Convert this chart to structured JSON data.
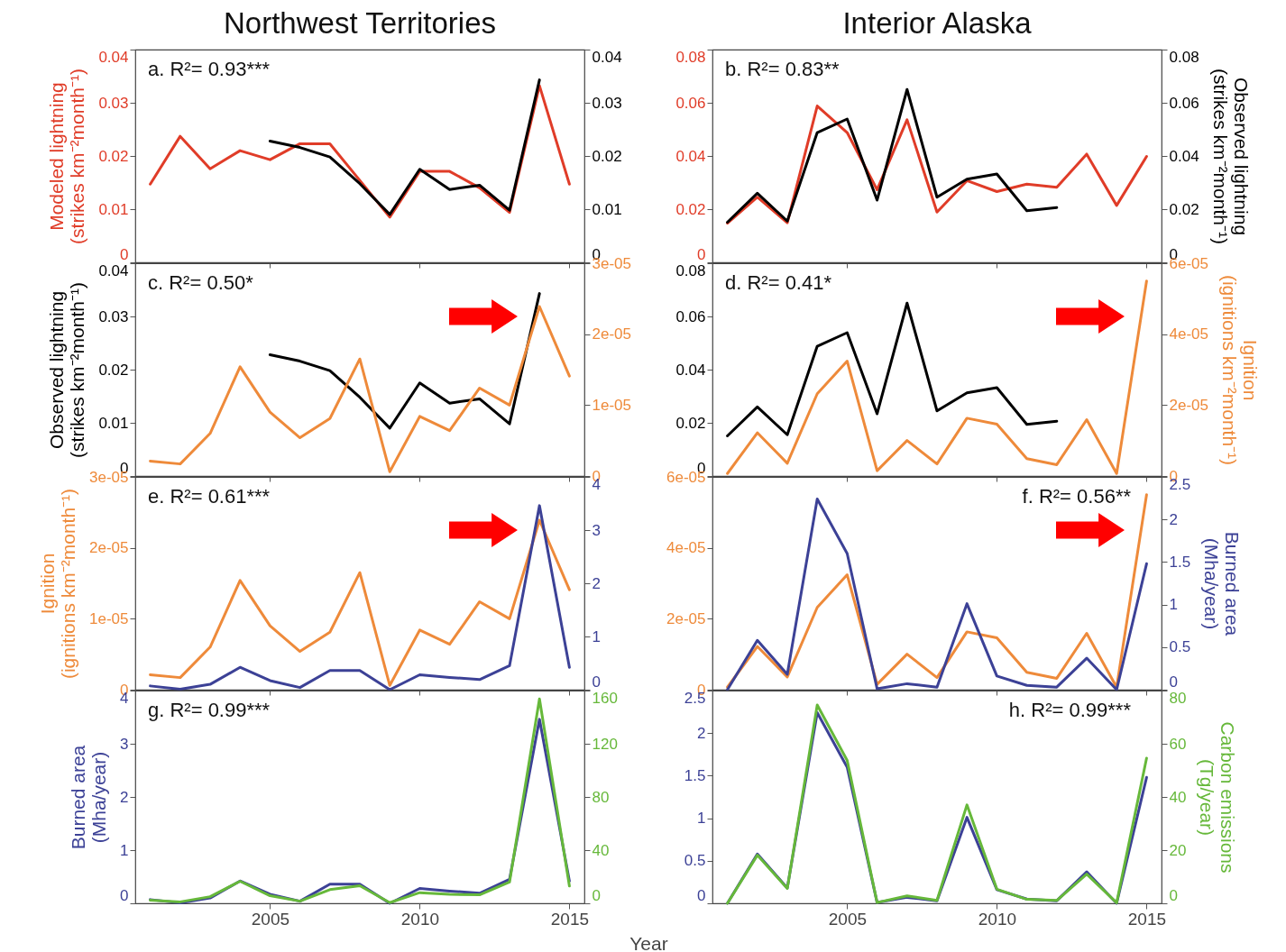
{
  "chart_data": [
    {
      "type": "line",
      "title": "Northwest Territories",
      "ylabel": "Modeled lightning\n(strikes km⁻²month⁻¹)",
      "annotations": [
        "a. R²= 0.93***"
      ],
      "x": [
        2001,
        2002,
        2003,
        2004,
        2005,
        2006,
        2007,
        2008,
        2009,
        2010,
        2011,
        2012,
        2013,
        2014,
        2015
      ],
      "xlim": [
        2000.5,
        2015.5
      ],
      "xticks": [
        2005,
        2010,
        2015
      ],
      "ylim": [
        0,
        0.04
      ],
      "yticks": [
        0,
        0.01,
        0.02,
        0.03,
        0.04
      ],
      "y2lim": [
        0,
        0.04
      ],
      "y2ticks": [
        0,
        0.01,
        0.02,
        0.03,
        0.04
      ],
      "tick_labels": "y",
      "series": [
        {
          "color": "#e03c28",
          "values": [
            0.0147,
            0.0237,
            0.0176,
            0.021,
            0.0193,
            0.0223,
            0.0223,
            0.0154,
            0.0085,
            0.0171,
            0.0171,
            0.014,
            0.0094,
            0.0332,
            0.0147
          ]
        },
        {
          "color": "#000000",
          "axis": "y2",
          "values": [
            null,
            null,
            null,
            null,
            0.0228,
            0.0216,
            0.0198,
            0.0148,
            0.009,
            0.0175,
            0.0137,
            0.0145,
            0.0098,
            0.0343,
            null
          ]
        }
      ]
    },
    {
      "type": "line",
      "title": "Interior Alaska",
      "y2label": "Observed lightning\n(strikes km⁻²month⁻¹)",
      "annotations": [
        "b. R²= 0.83**"
      ],
      "x": [
        2001,
        2002,
        2003,
        2004,
        2005,
        2006,
        2007,
        2008,
        2009,
        2010,
        2011,
        2012,
        2013,
        2014,
        2015
      ],
      "xlim": [
        2000.5,
        2015.5
      ],
      "xticks": [
        2005,
        2010,
        2015
      ],
      "ylim": [
        0,
        0.08
      ],
      "yticks": [
        0,
        0.02,
        0.04,
        0.06,
        0.08
      ],
      "y2lim": [
        0,
        0.08
      ],
      "y2ticks": [
        0,
        0.02,
        0.04,
        0.06,
        0.08
      ],
      "tick_labels": "y",
      "series": [
        {
          "color": "#e03c28",
          "values": [
            0.0147,
            0.0245,
            0.0149,
            0.0588,
            0.0488,
            0.0273,
            0.0536,
            0.0189,
            0.0307,
            0.0266,
            0.0294,
            0.0282,
            0.0407,
            0.0214,
            0.0398
          ]
        },
        {
          "color": "#000000",
          "axis": "y2",
          "values": [
            0.0151,
            0.026,
            0.0155,
            0.0488,
            0.0539,
            0.0234,
            0.065,
            0.0245,
            0.0313,
            0.0332,
            0.0194,
            0.0206,
            null,
            null,
            null
          ]
        }
      ]
    },
    {
      "type": "line",
      "ylabel": "Observed lightning\n(strikes km⁻²month⁻¹)",
      "annotations": [
        "c. R²= 0.50*"
      ],
      "x": [
        2001,
        2002,
        2003,
        2004,
        2005,
        2006,
        2007,
        2008,
        2009,
        2010,
        2011,
        2012,
        2013,
        2014,
        2015
      ],
      "xlim": [
        2000.5,
        2015.5
      ],
      "xticks": [
        2005,
        2010,
        2015
      ],
      "ylim": [
        0,
        0.04
      ],
      "yticks": [
        0,
        0.01,
        0.02,
        0.03,
        0.04
      ],
      "y2lim": [
        0,
        3e-05
      ],
      "y2ticks": [
        0,
        {
          "value": 1e-05,
          "label": "1e-05"
        },
        {
          "value": 2e-05,
          "label": "2e-05"
        },
        {
          "value": 3e-05,
          "label": "3e-05"
        }
      ],
      "tick_labels": "y",
      "series": [
        {
          "color": "#000000",
          "values": [
            null,
            null,
            null,
            null,
            0.0228,
            0.0216,
            0.0198,
            0.0148,
            0.009,
            0.0175,
            0.0137,
            0.0145,
            0.0098,
            0.0343,
            null
          ]
        },
        {
          "color": "#ee8a3a",
          "axis": "y2",
          "values": [
            2.1e-06,
            1.7e-06,
            6e-06,
            1.54e-05,
            9e-06,
            5.4e-06,
            8.1e-06,
            1.65e-05,
            6e-07,
            8.4e-06,
            6.4e-06,
            1.24e-05,
            1e-05,
            2.39e-05,
            1.41e-05
          ]
        }
      ]
    },
    {
      "type": "line",
      "y2label": "Ignition\n(ignitions km⁻²month⁻¹)",
      "annotations": [
        "d. R²= 0.41*"
      ],
      "x": [
        2001,
        2002,
        2003,
        2004,
        2005,
        2006,
        2007,
        2008,
        2009,
        2010,
        2011,
        2012,
        2013,
        2014,
        2015
      ],
      "xlim": [
        2000.5,
        2015.5
      ],
      "xticks": [
        2005,
        2010,
        2015
      ],
      "ylim": [
        0,
        0.08
      ],
      "yticks": [
        0,
        0.02,
        0.04,
        0.06,
        0.08
      ],
      "y2lim": [
        0,
        6e-05
      ],
      "y2ticks": [
        0,
        {
          "value": 2e-05,
          "label": "2e-05"
        },
        {
          "value": 4e-05,
          "label": "4e-05"
        },
        {
          "value": 6e-05,
          "label": "6e-05"
        }
      ],
      "tick_labels": "y",
      "series": [
        {
          "color": "#000000",
          "values": [
            0.0151,
            0.026,
            0.0155,
            0.0488,
            0.0539,
            0.0234,
            0.065,
            0.0245,
            0.0313,
            0.0332,
            0.0194,
            0.0206,
            null,
            null,
            null
          ]
        },
        {
          "color": "#ee8a3a",
          "axis": "y2",
          "values": [
            7e-07,
            1.22e-05,
            3.6e-06,
            2.32e-05,
            3.24e-05,
            1.5e-06,
            1e-05,
            3.4e-06,
            1.63e-05,
            1.46e-05,
            4.9e-06,
            3.2e-06,
            1.59e-05,
            7e-07,
            5.5e-05
          ]
        }
      ]
    },
    {
      "type": "line",
      "ylabel": "Ignition\n(ignitions km⁻²month⁻¹)",
      "annotations": [
        "e. R²= 0.61***"
      ],
      "x": [
        2001,
        2002,
        2003,
        2004,
        2005,
        2006,
        2007,
        2008,
        2009,
        2010,
        2011,
        2012,
        2013,
        2014,
        2015
      ],
      "xlim": [
        2000.5,
        2015.5
      ],
      "xticks": [
        2005,
        2010,
        2015
      ],
      "ylim": [
        0,
        3e-05
      ],
      "yticks": [
        0,
        {
          "value": 1e-05,
          "label": "1e-05"
        },
        {
          "value": 2e-05,
          "label": "2e-05"
        },
        {
          "value": 3e-05,
          "label": "3e-05"
        }
      ],
      "y2lim": [
        0,
        4
      ],
      "y2ticks": [
        0,
        1,
        2,
        3,
        4
      ],
      "tick_labels": "y",
      "series": [
        {
          "color": "#ee8a3a",
          "values": [
            2.1e-06,
            1.7e-06,
            6e-06,
            1.54e-05,
            9e-06,
            5.4e-06,
            8.1e-06,
            1.65e-05,
            6e-07,
            8.4e-06,
            6.4e-06,
            1.24e-05,
            1e-05,
            2.39e-05,
            1.41e-05
          ]
        },
        {
          "color": "#3c4196",
          "axis": "y2",
          "values": [
            0.07,
            0.01,
            0.1,
            0.42,
            0.17,
            0.04,
            0.36,
            0.36,
            0,
            0.28,
            0.23,
            0.19,
            0.45,
            3.46,
            0.42
          ]
        }
      ]
    },
    {
      "type": "line",
      "y2label": "Burned area\n(Mha/year)",
      "annotations": [
        "f. R²= 0.56**"
      ],
      "x": [
        2001,
        2002,
        2003,
        2004,
        2005,
        2006,
        2007,
        2008,
        2009,
        2010,
        2011,
        2012,
        2013,
        2014,
        2015
      ],
      "xlim": [
        2000.5,
        2015.5
      ],
      "xticks": [
        2005,
        2010,
        2015
      ],
      "ylim": [
        0,
        6e-05
      ],
      "yticks": [
        0,
        {
          "value": 2e-05,
          "label": "2e-05"
        },
        {
          "value": 4e-05,
          "label": "4e-05"
        },
        {
          "value": 6e-05,
          "label": "6e-05"
        }
      ],
      "y2lim": [
        0,
        2.5
      ],
      "y2ticks": [
        0,
        0.5,
        1,
        1.5,
        2,
        2.5
      ],
      "tick_labels": "y",
      "series": [
        {
          "color": "#ee8a3a",
          "values": [
            7e-07,
            1.22e-05,
            3.6e-06,
            2.32e-05,
            3.24e-05,
            1.5e-06,
            1e-05,
            3.4e-06,
            1.63e-05,
            1.46e-05,
            4.9e-06,
            3.2e-06,
            1.59e-05,
            7e-07,
            5.5e-05
          ]
        },
        {
          "color": "#3c4196",
          "axis": "y2",
          "values": [
            0,
            0.58,
            0.18,
            2.24,
            1.6,
            0.01,
            0.07,
            0.03,
            1.01,
            0.16,
            0.05,
            0.03,
            0.37,
            0,
            1.48
          ]
        }
      ]
    },
    {
      "type": "line",
      "ylabel": "Burned area\n(Mha/year)",
      "xlabel": "Year",
      "annotations": [
        "g. R²= 0.99***"
      ],
      "x": [
        2001,
        2002,
        2003,
        2004,
        2005,
        2006,
        2007,
        2008,
        2009,
        2010,
        2011,
        2012,
        2013,
        2014,
        2015
      ],
      "xlim": [
        2000.5,
        2015.5
      ],
      "xticks": [
        2005,
        2010,
        2015
      ],
      "ylim": [
        0,
        4
      ],
      "yticks": [
        0,
        1,
        2,
        3,
        4
      ],
      "y2lim": [
        0,
        160
      ],
      "y2ticks": [
        0,
        40,
        80,
        120,
        160
      ],
      "series": [
        {
          "color": "#3c4196",
          "values": [
            0.07,
            0.01,
            0.1,
            0.42,
            0.17,
            0.04,
            0.36,
            0.36,
            0,
            0.28,
            0.23,
            0.19,
            0.45,
            3.46,
            0.42
          ]
        },
        {
          "color": "#66b83a",
          "axis": "y2",
          "values": [
            2.3,
            1.1,
            5,
            16.6,
            5.7,
            1.6,
            10.3,
            13.2,
            0.5,
            8,
            6.8,
            6.4,
            16,
            153.8,
            13
          ]
        }
      ]
    },
    {
      "type": "line",
      "y2label": "Carbon emissions\n(Tg/year)",
      "annotations": [
        "h. R²= 0.99***"
      ],
      "x": [
        2001,
        2002,
        2003,
        2004,
        2005,
        2006,
        2007,
        2008,
        2009,
        2010,
        2011,
        2012,
        2013,
        2014,
        2015
      ],
      "xlim": [
        2000.5,
        2015.5
      ],
      "xticks": [
        2005,
        2010,
        2015
      ],
      "ylim": [
        0,
        2.5
      ],
      "yticks": [
        0,
        0.5,
        1,
        1.5,
        2,
        2.5
      ],
      "y2lim": [
        0,
        80
      ],
      "y2ticks": [
        0,
        20,
        40,
        60,
        80
      ],
      "series": [
        {
          "color": "#3c4196",
          "values": [
            0,
            0.58,
            0.18,
            2.24,
            1.6,
            0.01,
            0.07,
            0.03,
            1.01,
            0.16,
            0.05,
            0.03,
            0.37,
            0,
            1.48
          ]
        },
        {
          "color": "#66b83a",
          "axis": "y2",
          "values": [
            0,
            18.1,
            5.6,
            74.6,
            53.7,
            0.3,
            2.8,
            1.1,
            37,
            5.3,
            1.5,
            1.1,
            11,
            0.2,
            54.6
          ]
        }
      ]
    }
  ]
}
